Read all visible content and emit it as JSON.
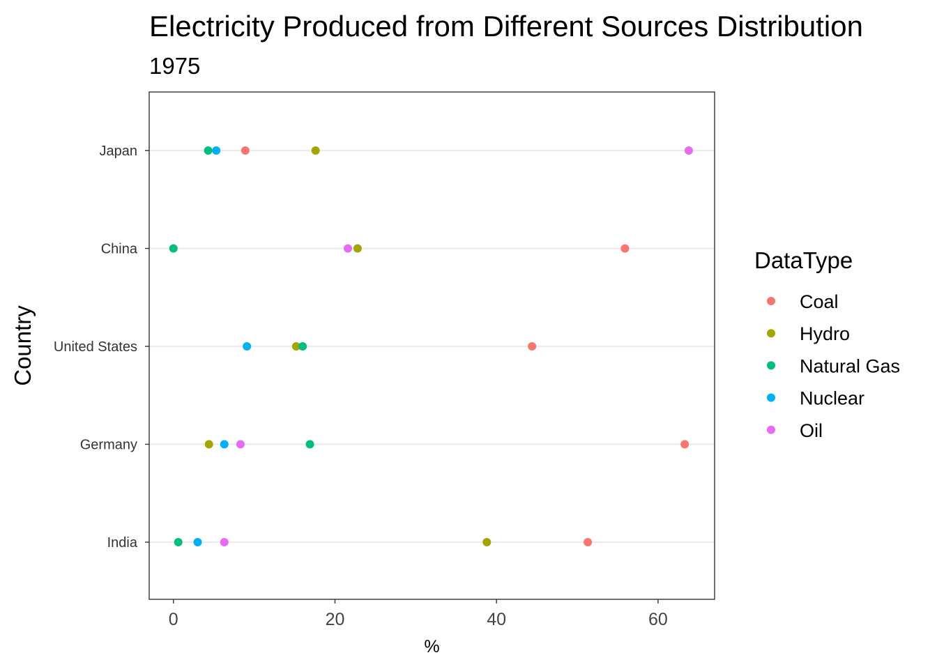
{
  "chart_data": {
    "type": "scatter",
    "title": "Electricity Produced from Different Sources Distribution",
    "subtitle": "1975",
    "xlabel": "%",
    "ylabel": "Country",
    "xlim": [
      -3,
      67
    ],
    "xticks": [
      0,
      20,
      40,
      60
    ],
    "grid": "horizontal",
    "legend": {
      "title": "DataType",
      "position": "right"
    },
    "categories": [
      "Japan",
      "China",
      "United States",
      "Germany",
      "India"
    ],
    "series": [
      {
        "name": "Coal",
        "color": "#F8766D",
        "values": [
          8.9,
          55.9,
          44.4,
          63.3,
          51.3
        ]
      },
      {
        "name": "Hydro",
        "color": "#A3A500",
        "values": [
          17.6,
          22.8,
          15.2,
          4.4,
          38.8
        ]
      },
      {
        "name": "Natural Gas",
        "color": "#00BF7D",
        "values": [
          4.3,
          0.0,
          16.0,
          16.9,
          0.6
        ]
      },
      {
        "name": "Nuclear",
        "color": "#00B0F6",
        "values": [
          5.3,
          null,
          9.1,
          6.3,
          3.0
        ]
      },
      {
        "name": "Oil",
        "color": "#E76BF3",
        "values": [
          63.8,
          21.6,
          null,
          8.3,
          6.3
        ]
      }
    ]
  }
}
